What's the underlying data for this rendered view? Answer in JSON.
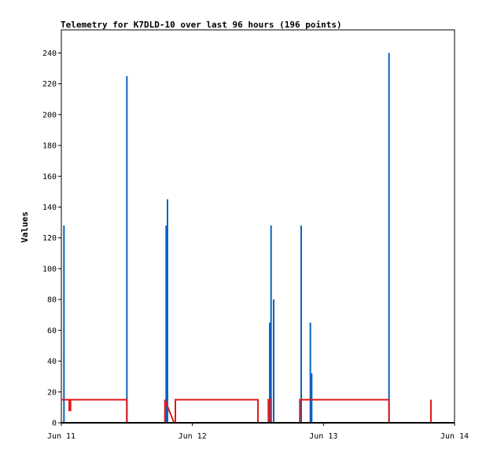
{
  "chart_data": {
    "type": "line",
    "title": "Telemetry for K7DLD-10 over last 96 hours (196 points)",
    "xlabel": "",
    "ylabel": "Values",
    "xlim": [
      0,
      3
    ],
    "ylim": [
      0,
      255
    ],
    "x_tick_values": [
      0,
      1,
      2,
      3
    ],
    "x_tick_labels": [
      "Jun 11",
      "Jun 12",
      "Jun 13",
      "Jun 14"
    ],
    "y_ticks": [
      0,
      20,
      40,
      60,
      80,
      100,
      120,
      140,
      160,
      180,
      200,
      220,
      240
    ],
    "grid": false,
    "legend": "none",
    "series": [
      {
        "color": "#0b62c0",
        "style": "spikes",
        "points": [
          [
            0.02,
            128
          ],
          [
            0.5,
            225
          ],
          [
            0.8,
            128
          ],
          [
            0.81,
            145
          ],
          [
            1.59,
            65
          ],
          [
            1.6,
            128
          ],
          [
            1.62,
            80
          ],
          [
            1.83,
            128
          ],
          [
            1.9,
            65
          ],
          [
            1.91,
            32
          ],
          [
            2.5,
            240
          ]
        ]
      },
      {
        "color": "#e11a1a",
        "style": "line",
        "points": [
          [
            0.0,
            15
          ],
          [
            0.06,
            15
          ],
          [
            0.06,
            8
          ],
          [
            0.07,
            8
          ],
          [
            0.07,
            15
          ],
          [
            0.5,
            15
          ],
          [
            0.5,
            0
          ],
          [
            0.79,
            0
          ],
          [
            0.79,
            15
          ],
          [
            0.86,
            0
          ],
          [
            0.87,
            0
          ],
          [
            0.87,
            15
          ],
          [
            1.5,
            15
          ],
          [
            1.5,
            0
          ],
          [
            1.58,
            0
          ],
          [
            1.58,
            15
          ],
          [
            1.6,
            15
          ],
          [
            1.6,
            0
          ],
          [
            1.82,
            0
          ],
          [
            1.82,
            15
          ],
          [
            2.5,
            15
          ],
          [
            2.5,
            0
          ],
          [
            2.82,
            0
          ],
          [
            2.82,
            15
          ]
        ]
      },
      {
        "color": "#000000",
        "style": "line",
        "points": [
          [
            0,
            0
          ],
          [
            3,
            0
          ]
        ]
      }
    ]
  }
}
